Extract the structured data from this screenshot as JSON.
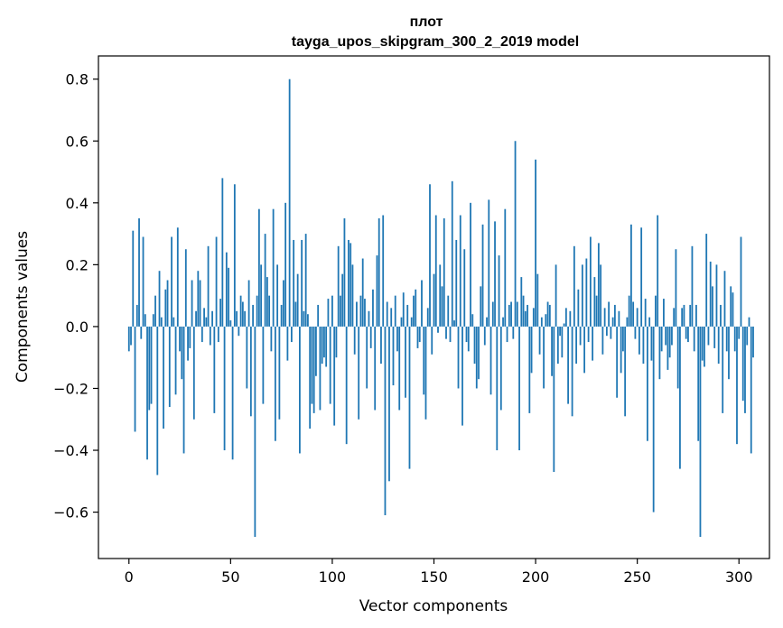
{
  "chart_data": {
    "type": "bar",
    "title": "плот",
    "subtitle": "tayga_upos_skipgram_300_2_2019 model",
    "xlabel": "Vector components",
    "ylabel": "Components values",
    "xlim": [
      -15,
      315
    ],
    "ylim": [
      -0.75,
      0.875
    ],
    "xticks": [
      0,
      50,
      100,
      150,
      200,
      250,
      300
    ],
    "yticks": [
      -0.6,
      -0.4,
      -0.2,
      0.0,
      0.2,
      0.4,
      0.6,
      0.8
    ],
    "ytick_labels": [
      "−0.6",
      "−0.4",
      "−0.2",
      "0.0",
      "0.2",
      "0.4",
      "0.6",
      "0.8"
    ],
    "grid": false,
    "bar_color": "#1f77b4",
    "series": [
      {
        "x_start": 0,
        "values": [
          -0.08,
          -0.06,
          0.31,
          -0.34,
          0.07,
          0.35,
          -0.04,
          0.29,
          0.04,
          -0.43,
          -0.27,
          -0.25,
          0.04,
          0.1,
          -0.48,
          0.18,
          0.03,
          -0.33,
          0.12,
          0.15,
          -0.26,
          0.29,
          0.03,
          -0.22,
          0.32,
          -0.08,
          -0.17,
          -0.41,
          0.25,
          -0.11,
          -0.07,
          0.15,
          -0.3,
          0.05,
          0.18,
          0.15,
          -0.05,
          0.06,
          0.03,
          0.26,
          -0.06,
          0.05,
          -0.28,
          0.29,
          -0.05,
          0.09,
          0.48,
          -0.4,
          0.24,
          0.19,
          0.02,
          -0.43,
          0.46,
          0.05,
          -0.03,
          0.1,
          0.08,
          0.05,
          -0.2,
          0.15,
          -0.29,
          0.07,
          -0.68,
          0.1,
          0.38,
          0.2,
          -0.25,
          0.3,
          0.16,
          0.1,
          -0.08,
          0.38,
          -0.37,
          0.2,
          -0.3,
          0.07,
          0.15,
          0.4,
          -0.11,
          0.8,
          -0.05,
          0.28,
          0.08,
          0.17,
          -0.41,
          0.28,
          0.05,
          0.3,
          0.04,
          -0.33,
          -0.25,
          -0.28,
          -0.16,
          0.07,
          -0.27,
          -0.12,
          -0.1,
          -0.13,
          0.09,
          -0.25,
          0.1,
          -0.32,
          -0.1,
          0.26,
          0.1,
          0.17,
          0.35,
          -0.38,
          0.28,
          0.27,
          0.2,
          -0.09,
          0.08,
          -0.3,
          0.1,
          0.22,
          0.09,
          -0.2,
          0.05,
          -0.07
        ]
      },
      {
        "x_start": 120,
        "values": [
          0.12,
          -0.27,
          0.23,
          0.35,
          -0.12,
          0.36,
          -0.61,
          0.08,
          -0.5,
          0.06,
          -0.19,
          0.1,
          -0.08,
          -0.27,
          0.03,
          0.11,
          -0.23,
          0.07,
          -0.46,
          0.03,
          0.1,
          0.12,
          -0.07,
          -0.05,
          0.15,
          -0.22,
          -0.3,
          0.06,
          0.46,
          -0.09,
          0.17,
          0.36,
          -0.02,
          0.2,
          0.13,
          0.35,
          -0.04,
          0.1,
          -0.05,
          0.47,
          0.02,
          0.28,
          -0.2,
          0.36,
          -0.32,
          0.25,
          -0.05,
          -0.08,
          0.4,
          0.04,
          -0.12,
          -0.2,
          -0.17,
          0.13,
          0.33,
          -0.06,
          0.03,
          0.41,
          -0.22,
          0.08,
          0.34,
          -0.4,
          0.23,
          -0.27,
          0.03,
          0.38,
          -0.05,
          0.07,
          0.08,
          -0.04,
          0.6,
          0.08,
          -0.4,
          0.16,
          0.1,
          0.05,
          0.07,
          -0.28,
          -0.15,
          0.06,
          0.54,
          0.17,
          -0.09,
          0.03,
          -0.2,
          0.04,
          0.08,
          0.07,
          -0.16,
          -0.47,
          0.2,
          -0.12,
          -0.03,
          -0.1,
          0.01,
          0.06,
          -0.25,
          0.05,
          -0.29,
          0.26,
          -0.12,
          0.12,
          -0.06,
          0.2,
          -0.15,
          0.22,
          -0.05,
          0.29,
          -0.11,
          0.16,
          0.1,
          0.27,
          0.2,
          -0.09,
          0.06,
          -0.03,
          0.08,
          -0.04,
          0.03,
          0.07,
          -0.23,
          0.05,
          -0.15,
          -0.08,
          -0.29,
          0.03,
          0.1,
          0.33,
          0.08,
          -0.04,
          0.06,
          -0.09,
          0.32,
          -0.12,
          0.09,
          -0.37,
          0.03,
          -0.11,
          -0.6,
          0.1,
          0.36,
          -0.17,
          -0.08,
          0.09,
          -0.06,
          -0.14,
          -0.1,
          -0.06,
          0.06,
          0.25,
          -0.2,
          -0.46,
          0.06,
          0.07,
          -0.04,
          -0.05,
          0.07,
          0.26,
          -0.08,
          0.07,
          -0.37,
          -0.68,
          -0.11,
          -0.13,
          0.3,
          -0.06,
          0.21,
          0.13,
          -0.07,
          0.2,
          -0.12,
          0.07,
          -0.28,
          0.18,
          -0.08,
          -0.17,
          0.13,
          0.11,
          -0.08,
          -0.38,
          -0.04,
          0.29,
          -0.24,
          -0.28,
          -0.06,
          0.03,
          -0.41,
          -0.1
        ]
      }
    ]
  }
}
